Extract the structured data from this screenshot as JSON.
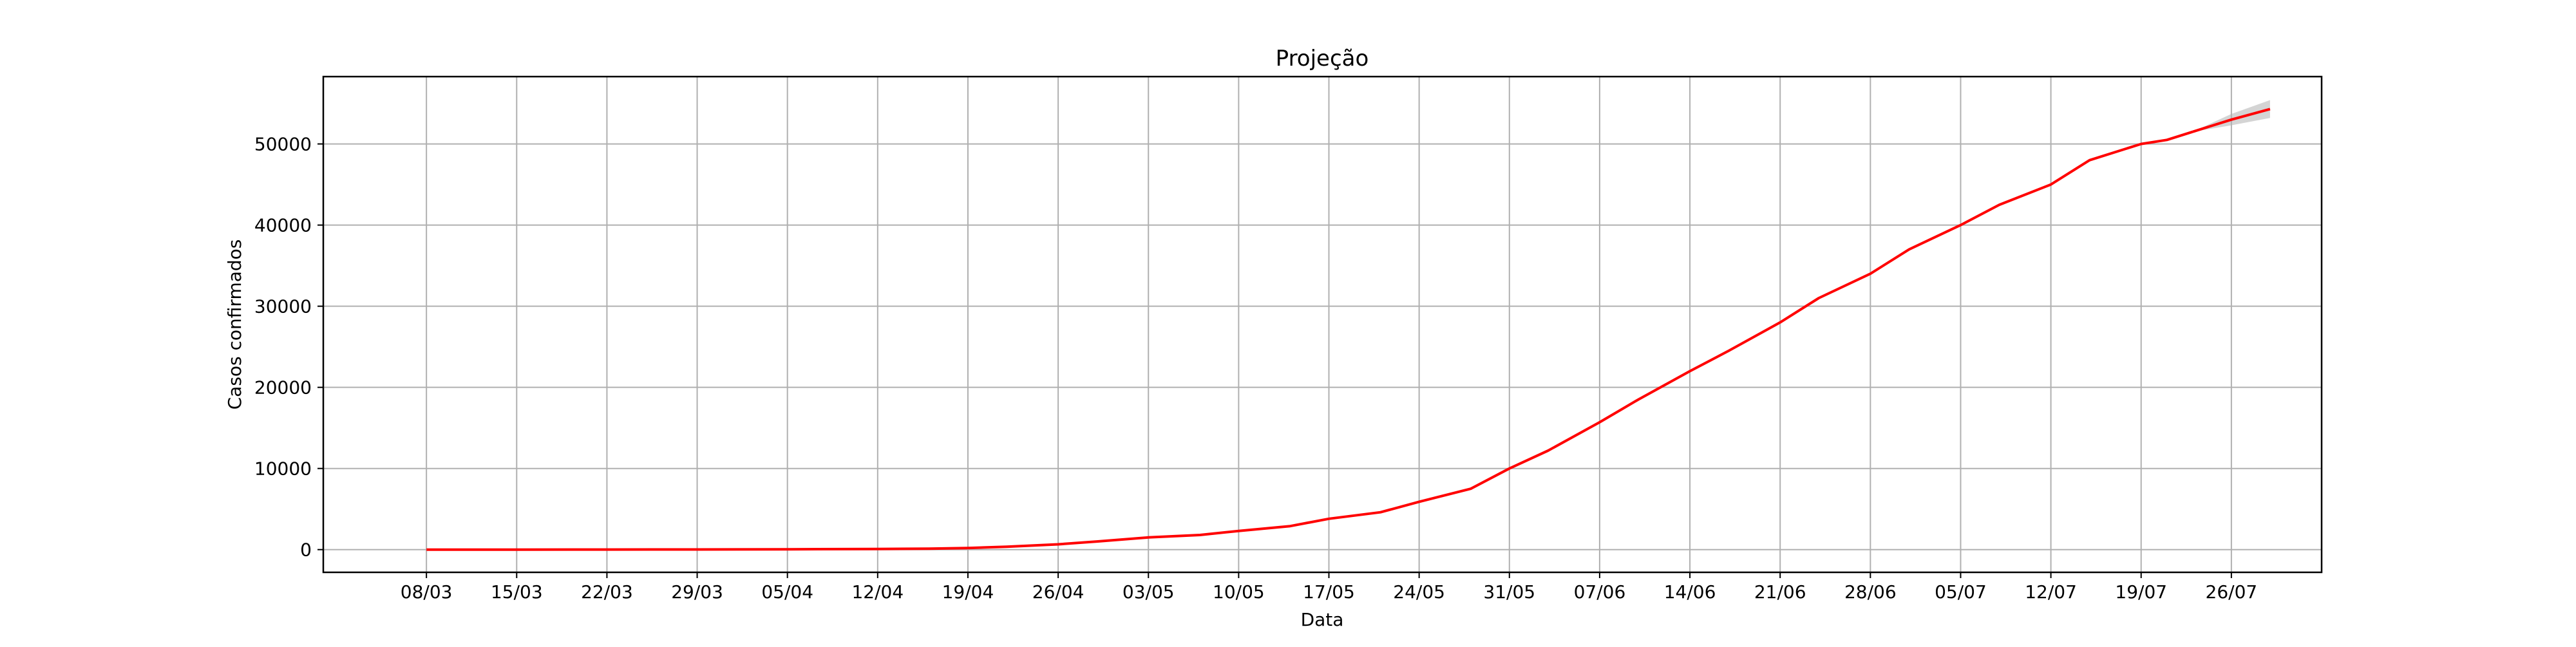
{
  "chart_data": {
    "type": "line",
    "title": "Projeção",
    "xlabel": "Data",
    "ylabel": "Casos confirmados",
    "x_ticks": [
      "08/03",
      "15/03",
      "22/03",
      "29/03",
      "05/04",
      "12/04",
      "19/04",
      "26/04",
      "03/05",
      "10/05",
      "17/05",
      "24/05",
      "31/05",
      "07/06",
      "14/06",
      "21/06",
      "28/06",
      "05/07",
      "12/07",
      "19/07",
      "26/07"
    ],
    "y_ticks": [
      0,
      10000,
      20000,
      30000,
      40000,
      50000
    ],
    "ylim": [
      -2800,
      58300
    ],
    "xlim": [
      "2020-02-29",
      "2020-08-02"
    ],
    "grid": true,
    "line_color": "#ff0000",
    "band_color": "#b0b0b0",
    "series": [
      {
        "x": [
          "2020-03-08",
          "2020-03-15",
          "2020-03-22",
          "2020-03-29",
          "2020-04-05",
          "2020-04-12",
          "2020-04-16",
          "2020-04-19",
          "2020-04-22",
          "2020-04-26",
          "2020-04-29",
          "2020-05-03",
          "2020-05-07",
          "2020-05-10",
          "2020-05-14",
          "2020-05-17",
          "2020-05-21",
          "2020-05-24",
          "2020-05-28",
          "2020-05-31",
          "2020-06-03",
          "2020-06-07",
          "2020-06-10",
          "2020-06-14",
          "2020-06-17",
          "2020-06-21",
          "2020-06-24",
          "2020-06-28",
          "2020-07-01",
          "2020-07-05",
          "2020-07-08",
          "2020-07-12",
          "2020-07-15",
          "2020-07-19",
          "2020-07-21",
          "2020-07-23"
        ],
        "values": [
          0,
          0,
          10,
          20,
          40,
          80,
          120,
          200,
          350,
          650,
          1000,
          1500,
          1800,
          2300,
          2900,
          3800,
          4600,
          5900,
          7500,
          10000,
          12200,
          15700,
          18500,
          22000,
          24500,
          28000,
          31000,
          34000,
          37000,
          40000,
          42500,
          45000,
          48000,
          50000,
          50500,
          51500
        ]
      }
    ],
    "projection": {
      "x": [
        "2020-07-23",
        "2020-07-26",
        "2020-07-29"
      ],
      "values": [
        51500,
        53000,
        54300
      ],
      "lower": [
        51500,
        52300,
        53200
      ],
      "upper": [
        51500,
        53700,
        55400
      ]
    }
  }
}
